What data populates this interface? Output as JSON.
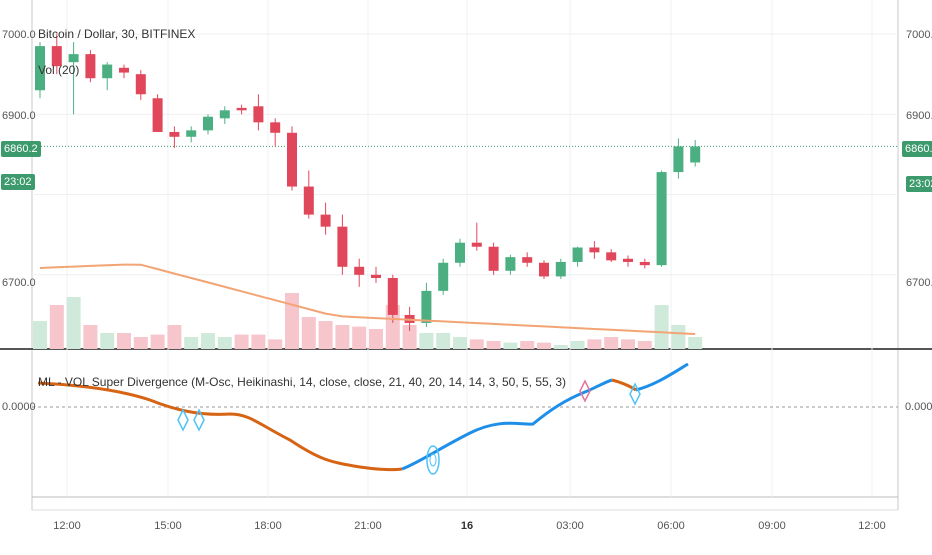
{
  "main_pane": {
    "title": "Bitcoin / Dollar, 30, BITFINEX",
    "volume_label": "Vol (20)",
    "last_price": "6860.2",
    "countdown": "23:02",
    "y_ticks": [
      "7000.0",
      "6900.0",
      "6700.0"
    ]
  },
  "indicator_pane": {
    "title": "ML - VOL Super Divergence (M-Osc, Heikinashi, 14, close, close, 21, 40, 20, 14, 14, 3, 50, 5, 55, 3)",
    "zero_label": "0.0000"
  },
  "x_axis": {
    "ticks": [
      "12:00",
      "15:00",
      "18:00",
      "21:00",
      "16",
      "03:00",
      "06:00",
      "09:00",
      "12:00"
    ]
  },
  "colors": {
    "up": "#4caf82",
    "down": "#e0475a",
    "ma": "#f3a474",
    "osc_down": "#d66414",
    "osc_up": "#1e8fe8",
    "pricelevel": "#3d9a6c"
  },
  "chart_data": {
    "type": "candlestick",
    "title": "Bitcoin / Dollar, 30, BITFINEX",
    "x": [
      "11:00",
      "11:30",
      "12:00",
      "12:30",
      "13:00",
      "13:30",
      "14:00",
      "14:30",
      "15:00",
      "15:30",
      "16:00",
      "16:30",
      "17:00",
      "17:30",
      "18:00",
      "18:30",
      "19:00",
      "19:30",
      "20:00",
      "20:30",
      "21:00",
      "21:30",
      "22:00",
      "22:30",
      "23:00",
      "23:30",
      "00:00",
      "00:30",
      "01:00",
      "01:30",
      "02:00",
      "02:30",
      "03:00",
      "03:30",
      "04:00",
      "04:30",
      "05:00",
      "05:30",
      "06:00",
      "06:30"
    ],
    "candles": [
      [
        6930,
        6990,
        6920,
        6985
      ],
      [
        6985,
        7000,
        6950,
        6960
      ],
      [
        6965,
        6990,
        6900,
        6975
      ],
      [
        6975,
        6980,
        6940,
        6945
      ],
      [
        6945,
        6965,
        6930,
        6962
      ],
      [
        6958,
        6962,
        6945,
        6952
      ],
      [
        6950,
        6955,
        6918,
        6925
      ],
      [
        6920,
        6925,
        6878,
        6878
      ],
      [
        6878,
        6885,
        6858,
        6872
      ],
      [
        6872,
        6885,
        6865,
        6880
      ],
      [
        6880,
        6900,
        6875,
        6897
      ],
      [
        6895,
        6910,
        6888,
        6905
      ],
      [
        6908,
        6912,
        6900,
        6905
      ],
      [
        6910,
        6925,
        6880,
        6890
      ],
      [
        6890,
        6895,
        6860,
        6877
      ],
      [
        6877,
        6885,
        6805,
        6810
      ],
      [
        6810,
        6830,
        6770,
        6775
      ],
      [
        6775,
        6790,
        6750,
        6760
      ],
      [
        6760,
        6775,
        6700,
        6710
      ],
      [
        6710,
        6720,
        6685,
        6700
      ],
      [
        6700,
        6710,
        6690,
        6696
      ],
      [
        6696,
        6700,
        6640,
        6650
      ],
      [
        6650,
        6660,
        6630,
        6640
      ],
      [
        6640,
        6690,
        6635,
        6680
      ],
      [
        6680,
        6720,
        6675,
        6715
      ],
      [
        6715,
        6745,
        6710,
        6740
      ],
      [
        6740,
        6765,
        6730,
        6735
      ],
      [
        6735,
        6740,
        6700,
        6705
      ],
      [
        6705,
        6725,
        6700,
        6722
      ],
      [
        6722,
        6728,
        6710,
        6715
      ],
      [
        6715,
        6718,
        6695,
        6698
      ],
      [
        6698,
        6720,
        6695,
        6716
      ],
      [
        6716,
        6735,
        6710,
        6734
      ],
      [
        6734,
        6742,
        6720,
        6728
      ],
      [
        6728,
        6732,
        6716,
        6718
      ],
      [
        6720,
        6724,
        6710,
        6716
      ],
      [
        6716,
        6720,
        6708,
        6712
      ],
      [
        6712,
        6830,
        6710,
        6828
      ],
      [
        6828,
        6870,
        6820,
        6860
      ],
      [
        6840,
        6868,
        6835,
        6860
      ]
    ],
    "volume_ma": "Vol (20)",
    "oscillator": {
      "name": "ML - VOL Super Divergence",
      "ylim": [
        -1,
        1
      ],
      "zero_line": "0.0000"
    },
    "ylim": [
      6620,
      7030
    ]
  }
}
